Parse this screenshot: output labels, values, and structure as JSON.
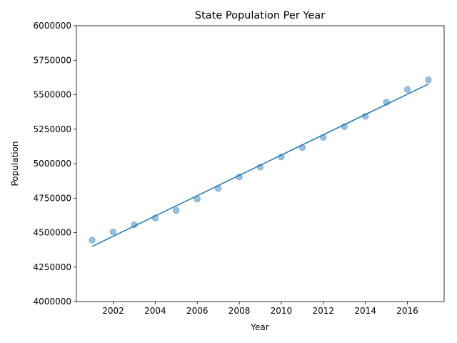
{
  "chart_data": {
    "type": "scatter",
    "title": "State Population Per Year",
    "xlabel": "Year",
    "ylabel": "Population",
    "xlim": [
      2000.25,
      2017.75
    ],
    "ylim": [
      4000000,
      6000000
    ],
    "x_ticks": [
      2002,
      2004,
      2006,
      2008,
      2010,
      2012,
      2014,
      2016
    ],
    "y_ticks": [
      4000000,
      4250000,
      4500000,
      4750000,
      5000000,
      5250000,
      5500000,
      5750000,
      6000000
    ],
    "grid": false,
    "legend": false,
    "colors": {
      "points": "#1f77b4",
      "point_opacity": 0.45,
      "fit_line": "#1f77b4"
    },
    "series": [
      {
        "kind": "scatter",
        "x": [
          2001,
          2002,
          2003,
          2004,
          2005,
          2006,
          2007,
          2008,
          2009,
          2010,
          2011,
          2012,
          2013,
          2014,
          2015,
          2016,
          2017
        ],
        "y": [
          4445000,
          4505000,
          4557000,
          4605000,
          4660000,
          4743000,
          4820000,
          4904000,
          4975000,
          5048000,
          5116000,
          5190000,
          5268000,
          5343000,
          5445000,
          5537000,
          5607000
        ]
      },
      {
        "kind": "line",
        "x": [
          2001,
          2017
        ],
        "y": [
          4400000,
          5577000
        ]
      }
    ]
  }
}
